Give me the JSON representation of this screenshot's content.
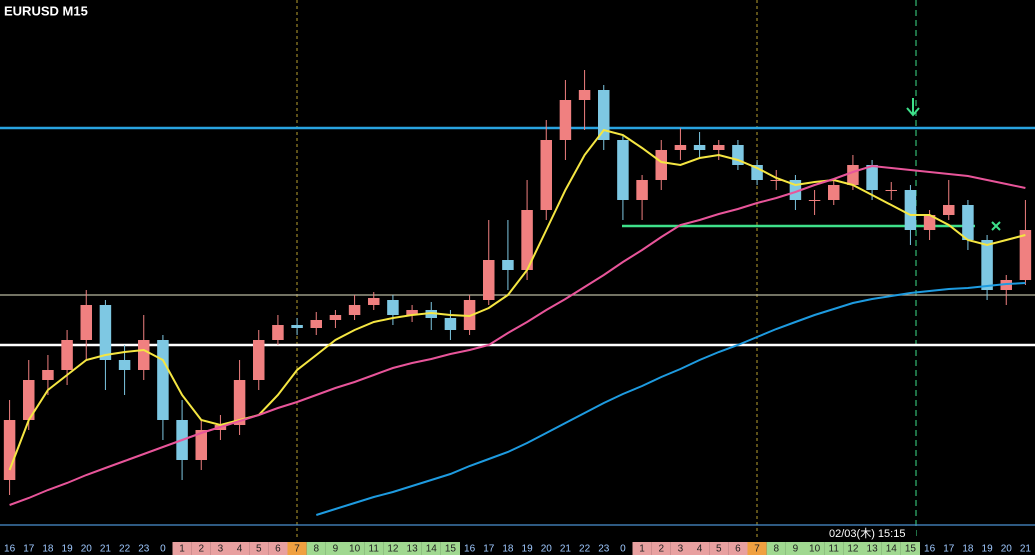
{
  "chart_data": {
    "type": "candlestick",
    "title": "EURUSD  M15",
    "time_label": "02/03(木) 15:15",
    "categories": [
      "16",
      "17",
      "18",
      "19",
      "20",
      "21",
      "22",
      "23",
      "0",
      "1",
      "2",
      "3",
      "4",
      "5",
      "6",
      "7",
      "8",
      "9",
      "10",
      "11",
      "12",
      "13",
      "14",
      "15",
      "16",
      "17",
      "18",
      "19",
      "20",
      "21",
      "22",
      "23",
      "0",
      "1",
      "2",
      "3",
      "4",
      "5",
      "6",
      "7",
      "8",
      "9",
      "10",
      "11",
      "12",
      "13",
      "14",
      "15",
      "16",
      "17",
      "18",
      "19",
      "20",
      "21"
    ],
    "ylim": [
      0,
      540
    ],
    "up_color": "#f08080",
    "down_color": "#7ec8e3",
    "candles": {
      "open": [
        60,
        120,
        160,
        170,
        200,
        235,
        180,
        170,
        200,
        120,
        80,
        110,
        115,
        160,
        200,
        215,
        212,
        220,
        225,
        235,
        240,
        225,
        230,
        222,
        210,
        240,
        280,
        270,
        330,
        400,
        440,
        450,
        400,
        340,
        360,
        390,
        395,
        390,
        395,
        375,
        360,
        360,
        340,
        340,
        355,
        375,
        350,
        350,
        310,
        325,
        335,
        300,
        250,
        260
      ],
      "high": [
        140,
        180,
        185,
        210,
        250,
        240,
        195,
        225,
        205,
        140,
        120,
        125,
        180,
        210,
        225,
        222,
        228,
        230,
        245,
        248,
        245,
        235,
        238,
        230,
        245,
        320,
        320,
        360,
        420,
        460,
        470,
        455,
        405,
        365,
        400,
        412,
        408,
        400,
        400,
        380,
        370,
        365,
        350,
        360,
        385,
        380,
        358,
        355,
        330,
        360,
        340,
        305,
        265,
        340
      ],
      "low": [
        45,
        110,
        145,
        155,
        180,
        150,
        145,
        160,
        100,
        60,
        70,
        100,
        105,
        150,
        195,
        205,
        205,
        212,
        220,
        230,
        215,
        218,
        210,
        200,
        205,
        235,
        250,
        260,
        320,
        380,
        410,
        390,
        320,
        320,
        350,
        380,
        382,
        380,
        370,
        355,
        350,
        330,
        325,
        335,
        350,
        340,
        340,
        295,
        300,
        320,
        290,
        240,
        235,
        255
      ],
      "close": [
        120,
        160,
        170,
        200,
        235,
        180,
        170,
        200,
        120,
        80,
        110,
        115,
        160,
        200,
        215,
        212,
        220,
        225,
        235,
        242,
        225,
        230,
        222,
        210,
        240,
        280,
        270,
        330,
        400,
        440,
        450,
        400,
        340,
        360,
        390,
        395,
        390,
        395,
        375,
        360,
        360,
        340,
        340,
        355,
        375,
        350,
        350,
        310,
        325,
        335,
        300,
        250,
        260,
        310
      ]
    },
    "lines": [
      {
        "color": "#f5e642",
        "values": [
          70,
          120,
          150,
          165,
          180,
          185,
          188,
          190,
          180,
          145,
          120,
          115,
          120,
          125,
          145,
          170,
          185,
          200,
          210,
          218,
          222,
          225,
          227,
          225,
          224,
          232,
          245,
          270,
          310,
          350,
          385,
          410,
          405,
          392,
          378,
          375,
          382,
          385,
          380,
          372,
          362,
          355,
          358,
          360,
          355,
          345,
          335,
          325,
          325,
          315,
          300,
          295,
          300,
          305
        ]
      },
      {
        "color": "#e8559a",
        "values": [
          35,
          42,
          50,
          57,
          65,
          72,
          79,
          86,
          93,
          100,
          107,
          113,
          119,
          125,
          132,
          138,
          145,
          152,
          158,
          165,
          172,
          177,
          181,
          186,
          190,
          195,
          207,
          218,
          230,
          241,
          253,
          265,
          278,
          290,
          303,
          315,
          320,
          326,
          331,
          337,
          342,
          348,
          355,
          361,
          368,
          374,
          372,
          370,
          368,
          366,
          364,
          360,
          356,
          352
        ]
      },
      {
        "color": "#1e9be0",
        "values": [
          null,
          null,
          null,
          null,
          null,
          null,
          null,
          null,
          null,
          null,
          null,
          null,
          null,
          null,
          null,
          null,
          25,
          31,
          37,
          43,
          48,
          54,
          60,
          66,
          74,
          81,
          88,
          97,
          107,
          117,
          127,
          137,
          146,
          154,
          163,
          171,
          180,
          188,
          195,
          203,
          211,
          218,
          225,
          231,
          237,
          241,
          244,
          247,
          249,
          251,
          252,
          254,
          256,
          257
        ]
      }
    ],
    "levels": [
      {
        "value": 412,
        "color": "#29a3e0"
      },
      {
        "value": 245,
        "color": "#b8b8a0"
      },
      {
        "value": 195,
        "color": "#ffffff"
      },
      {
        "value": 15,
        "color": "#4a8fd0"
      },
      {
        "value": 314,
        "color": "#3ee08a"
      }
    ]
  }
}
